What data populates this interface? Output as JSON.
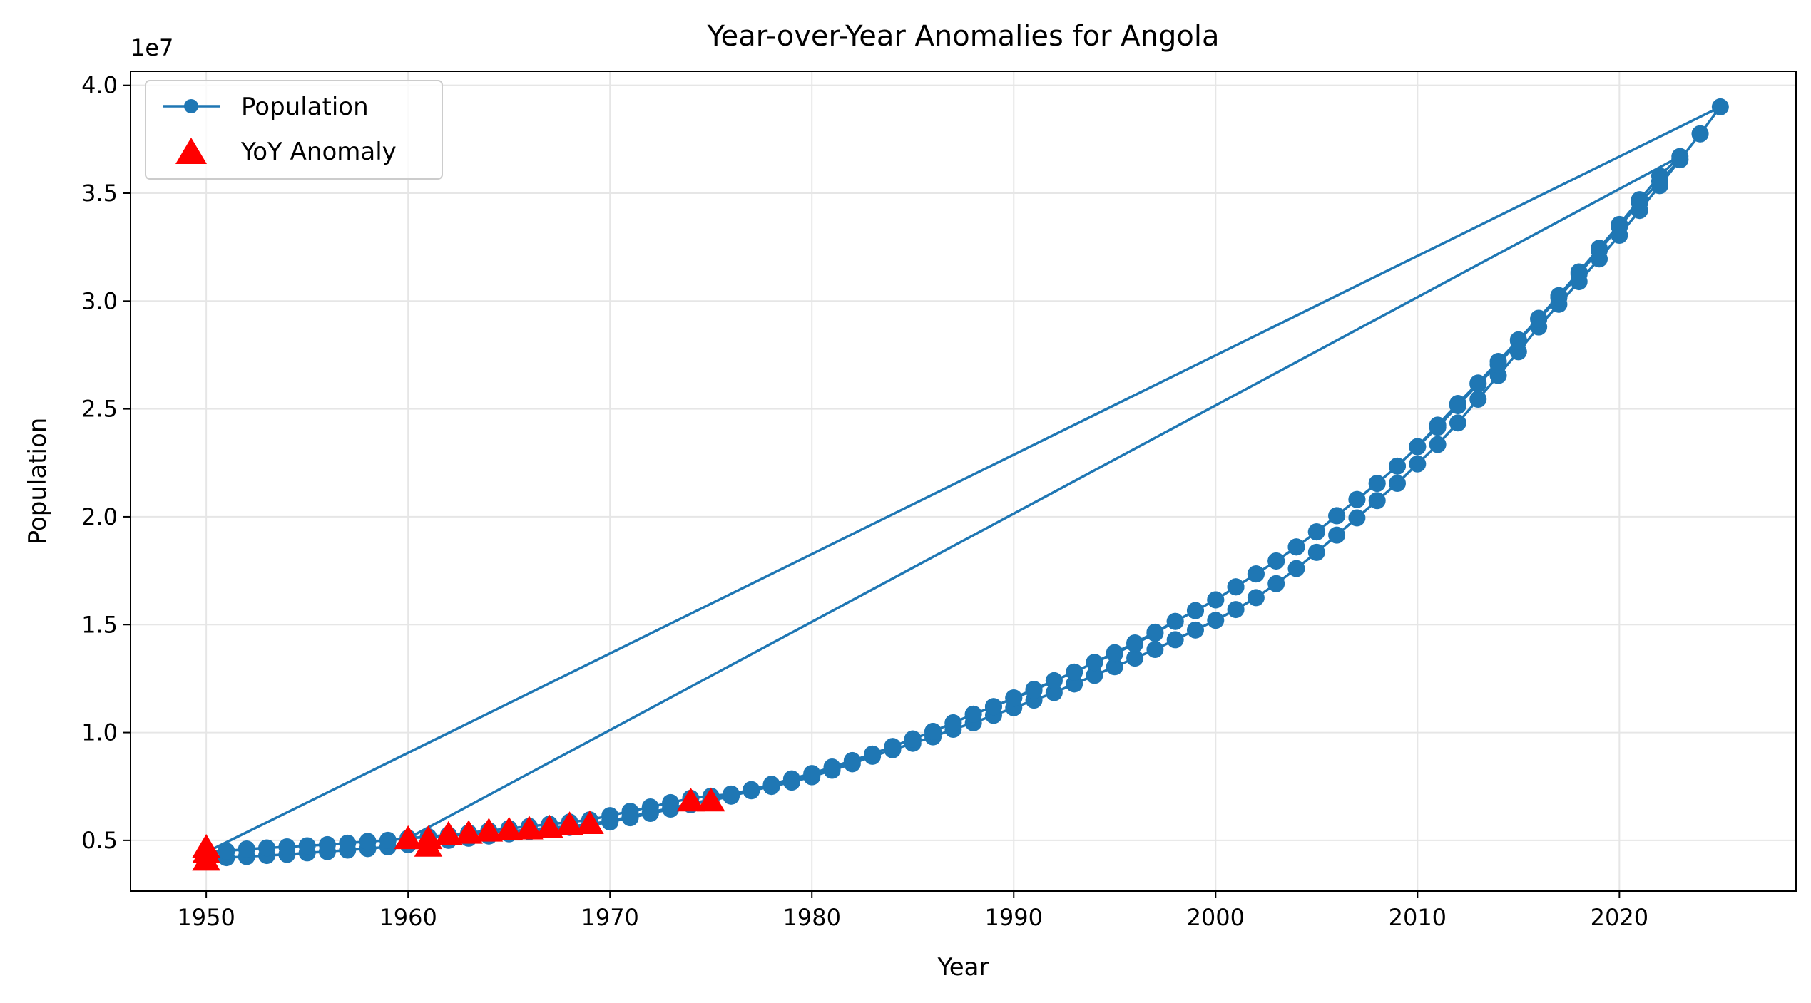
{
  "chart_data": {
    "type": "line",
    "title": "Year-over-Year Anomalies for Angola",
    "xlabel": "Year",
    "ylabel": "Population",
    "y_offset_label": "1e7",
    "xlim": [
      1946.25,
      2028.75
    ],
    "ylim": [
      2650000,
      40650000
    ],
    "xticks": [
      1950,
      1960,
      1970,
      1980,
      1990,
      2000,
      2010,
      2020
    ],
    "yticks": [
      5000000,
      10000000,
      15000000,
      20000000,
      25000000,
      30000000,
      35000000,
      40000000
    ],
    "ytick_labels": [
      "0.5",
      "1.0",
      "1.5",
      "2.0",
      "2.5",
      "3.0",
      "3.5",
      "4.0"
    ],
    "grid": true,
    "legend_position": "top-left",
    "colors": {
      "line": "#1f77b4",
      "anomaly": "#ff0000",
      "grid": "#e6e6e6"
    },
    "series": [
      {
        "name": "Population",
        "style": "line-with-circle-markers",
        "x": [
          1950,
          1951,
          1952,
          1953,
          1954,
          1955,
          1956,
          1957,
          1958,
          1959,
          1960,
          1961,
          1962,
          1963,
          1964,
          1965,
          1966,
          1967,
          1968,
          1969,
          1970,
          1971,
          1972,
          1973,
          1974,
          1975,
          1976,
          1977,
          1978,
          1979,
          1980,
          1981,
          1982,
          1983,
          1984,
          1985,
          1986,
          1987,
          1988,
          1989,
          1990,
          1991,
          1992,
          1993,
          1994,
          1995,
          1996,
          1997,
          1998,
          1999,
          2000,
          2001,
          2002,
          2003,
          2004,
          2005,
          2006,
          2007,
          2008,
          2009,
          2010,
          2011,
          2012,
          2013,
          2014,
          2015,
          2016,
          2017,
          2018,
          2019,
          2020,
          2021,
          2022,
          2023,
          2024,
          2025,
          1950,
          1951,
          1952,
          1953,
          1954,
          1955,
          1956,
          1957,
          1958,
          1959,
          1960,
          1961,
          1962,
          1963,
          1964,
          1965,
          1966,
          1967,
          1968,
          1969,
          1970,
          1971,
          1972,
          1973,
          1974,
          1975,
          1976,
          1977,
          1978,
          1979,
          1980,
          1981,
          1982,
          1983,
          1984,
          1985,
          1986,
          1987,
          1988,
          1989,
          1990,
          1991,
          1992,
          1993,
          1994,
          1995,
          1996,
          1997,
          1998,
          1999,
          2000,
          2001,
          2002,
          2003,
          2004,
          2005,
          2006,
          2007,
          2008,
          2009,
          2010,
          2011,
          2012,
          2013,
          2014,
          2015,
          2016,
          2017,
          2018,
          2019,
          2020,
          2021,
          2022,
          2023,
          1960,
          1961,
          1962,
          1963,
          1964,
          1965,
          1966,
          1967,
          1968,
          1969,
          1970,
          1971,
          1972,
          1973,
          1974,
          1975,
          1976,
          1977,
          1978,
          1979,
          1980,
          1981,
          1982,
          1983,
          1984,
          1985,
          1986,
          1987,
          1988,
          1989,
          1990,
          1991,
          1992,
          1993,
          1994,
          1995,
          1996,
          1997,
          1998,
          1999,
          2000,
          2001,
          2002,
          2003,
          2004,
          2005,
          2006,
          2007,
          2008,
          2009,
          2010,
          2011,
          2012,
          2013,
          2014,
          2015,
          2016,
          2017,
          2018,
          2019,
          2020,
          2021,
          2022,
          2023,
          2024
        ],
        "y": [
          4100000,
          4200000,
          4250000,
          4300000,
          4350000,
          4420000,
          4480000,
          4550000,
          4620000,
          4700000,
          4800000,
          4900000,
          5000000,
          5100000,
          5200000,
          5300000,
          5400000,
          5500000,
          5600000,
          5700000,
          5850000,
          6050000,
          6250000,
          6450000,
          6650000,
          6850000,
          7050000,
          7300000,
          7500000,
          7700000,
          7950000,
          8250000,
          8550000,
          8900000,
          9200000,
          9500000,
          9800000,
          10150000,
          10450000,
          10800000,
          11150000,
          11500000,
          11850000,
          12250000,
          12650000,
          13050000,
          13450000,
          13850000,
          14300000,
          14750000,
          15200000,
          15700000,
          16250000,
          16900000,
          17600000,
          18350000,
          19150000,
          19950000,
          20750000,
          21550000,
          22450000,
          23350000,
          24350000,
          25450000,
          26550000,
          27650000,
          28800000,
          29850000,
          30900000,
          31950000,
          33050000,
          34200000,
          35350000,
          36550000,
          37750000,
          39000000,
          4450000,
          4500000,
          4600000,
          4650000,
          4700000,
          4750000,
          4800000,
          4870000,
          4950000,
          5000000,
          5100000,
          5170000,
          5250000,
          5350000,
          5450000,
          5550000,
          5650000,
          5750000,
          5850000,
          5950000,
          6150000,
          6350000,
          6550000,
          6750000,
          6950000,
          7050000,
          7150000,
          7350000,
          7550000,
          7800000,
          8050000,
          8350000,
          8650000,
          9000000,
          9350000,
          9700000,
          10050000,
          10450000,
          10850000,
          11200000,
          11600000,
          12000000,
          12400000,
          12800000,
          13250000,
          13650000,
          14100000,
          14600000,
          15150000,
          15650000,
          16150000,
          16750000,
          17350000,
          17950000,
          18600000,
          19300000,
          20050000,
          20800000,
          21550000,
          22350000,
          23250000,
          24250000,
          25250000,
          26200000,
          27200000,
          28200000,
          29200000,
          30250000,
          31350000,
          32450000,
          33550000,
          34700000,
          35800000,
          36700000,
          5100000,
          5150000,
          5200000,
          5280000,
          5350000,
          5420000,
          5500000,
          5580000,
          5650000,
          5750000,
          5900000,
          6100000,
          6300000,
          6500000,
          6700000,
          6900000,
          7100000,
          7350000,
          7600000,
          7850000,
          8100000,
          8400000,
          8700000,
          9000000,
          9350000,
          9700000,
          10050000,
          10450000,
          10850000,
          11200000,
          11600000,
          11950000,
          12400000,
          12800000,
          13250000,
          13700000,
          14150000,
          14650000,
          15150000,
          15650000,
          16150000,
          16750000,
          17350000,
          17950000,
          18600000,
          19300000,
          20050000,
          20800000,
          21550000,
          22350000,
          23250000,
          24150000,
          25150000,
          26150000,
          27050000,
          28150000,
          29150000,
          30150000,
          31250000,
          32350000,
          33450000,
          34550000,
          35550000,
          36550000,
          37750000
        ]
      },
      {
        "name": "YoY Anomaly",
        "style": "red-triangle-markers",
        "x": [
          1950,
          1950,
          1950,
          1960,
          1961,
          1961,
          1962,
          1963,
          1964,
          1965,
          1966,
          1967,
          1968,
          1969,
          1974,
          1975
        ],
        "y": [
          4100000,
          4450000,
          4700000,
          5100000,
          5100000,
          4750000,
          5300000,
          5350000,
          5450000,
          5500000,
          5550000,
          5600000,
          5750000,
          5800000,
          6850000,
          6850000
        ]
      }
    ]
  }
}
